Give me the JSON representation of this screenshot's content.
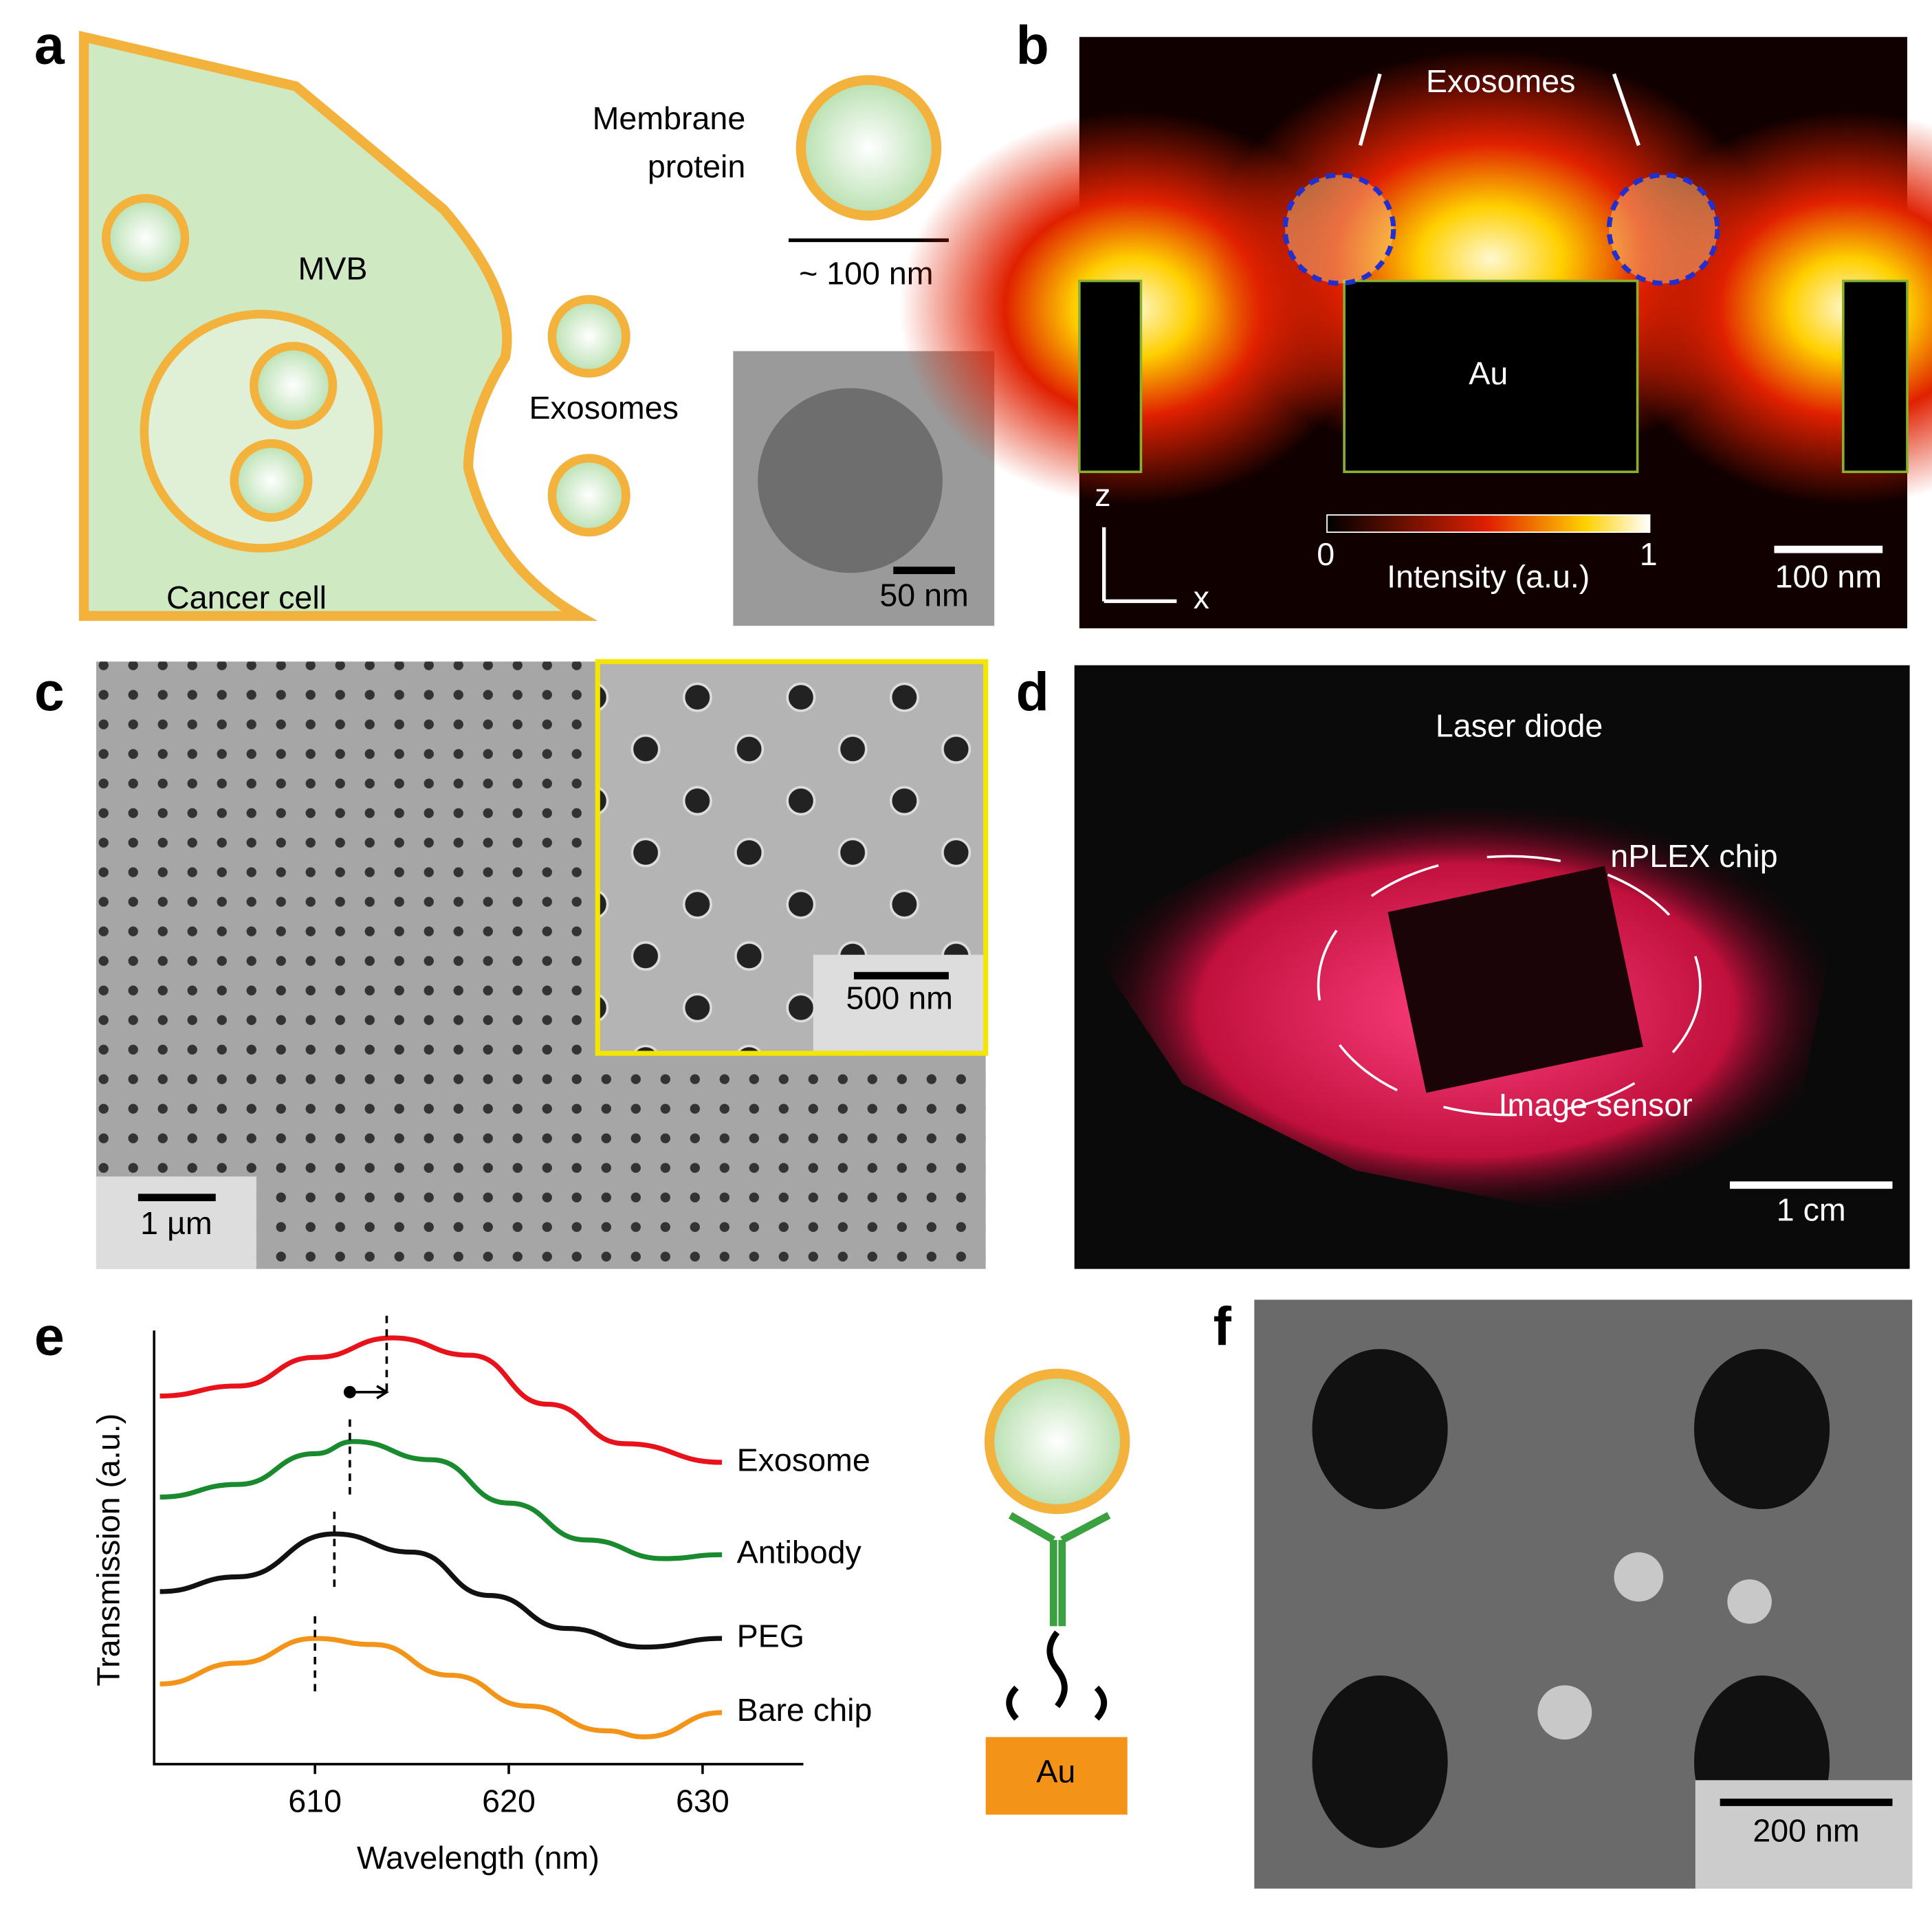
{
  "figure": {
    "a": {
      "label": "a",
      "membrane_protein": [
        "Membrane",
        "protein"
      ],
      "size": "~ 100 nm",
      "mvb": "MVB",
      "exosomes": "Exosomes",
      "cell": "Cancer cell",
      "tem_scale": "50 nm"
    },
    "b": {
      "label": "b",
      "exosomes": "Exosomes",
      "au": "Au",
      "cbar_min": "0",
      "cbar_max": "1",
      "cbar_label": "Intensity (a.u.)",
      "scale": "100 nm",
      "axis_z": "z",
      "axis_x": "x"
    },
    "c": {
      "label": "c",
      "inset_scale": "500 nm",
      "scale": "1 µm"
    },
    "d": {
      "label": "d",
      "laser": "Laser diode",
      "chip": "nPLEX chip",
      "sensor": "Image sensor",
      "scale": "1 cm"
    },
    "e": {
      "label": "e",
      "au": "Au"
    },
    "f": {
      "label": "f",
      "scale": "200 nm"
    }
  },
  "chart_data": {
    "type": "line",
    "x_label": "Wavelength (nm)",
    "y_label": "Transmission (a.u.)",
    "xlim": [
      601.7,
      635.2
    ],
    "ylim": [
      0,
      10
    ],
    "xticks": [
      610,
      620,
      630
    ],
    "series": [
      {
        "name": "Exosome",
        "color": "#e8121b",
        "x": [
          602,
          606,
          610,
          614,
          618,
          622,
          626,
          631
        ],
        "values": [
          8.49,
          8.72,
          9.38,
          9.83,
          9.43,
          8.3,
          7.39,
          6.96
        ],
        "peak": 613.7
      },
      {
        "name": "Antibody",
        "color": "#1a8a2e",
        "x": [
          602,
          606,
          610,
          612,
          616,
          620,
          624,
          628,
          631
        ],
        "values": [
          6.16,
          6.45,
          7.16,
          7.44,
          7.02,
          6.02,
          5.17,
          4.74,
          4.83
        ],
        "peak": 611.8
      },
      {
        "name": "PEG",
        "color": "#111111",
        "x": [
          602,
          606,
          611,
          615,
          619,
          623,
          627,
          631
        ],
        "values": [
          3.98,
          4.32,
          5.31,
          4.89,
          3.89,
          3.13,
          2.7,
          2.9
        ],
        "peak": 611
      },
      {
        "name": "Bare chip",
        "color": "#f39419",
        "x": [
          602,
          606,
          610,
          613,
          617,
          621,
          625,
          627,
          631
        ],
        "values": [
          1.85,
          2.33,
          2.9,
          2.76,
          2.05,
          1.34,
          0.77,
          0.63,
          1.19
        ],
        "peak": 610
      }
    ]
  }
}
